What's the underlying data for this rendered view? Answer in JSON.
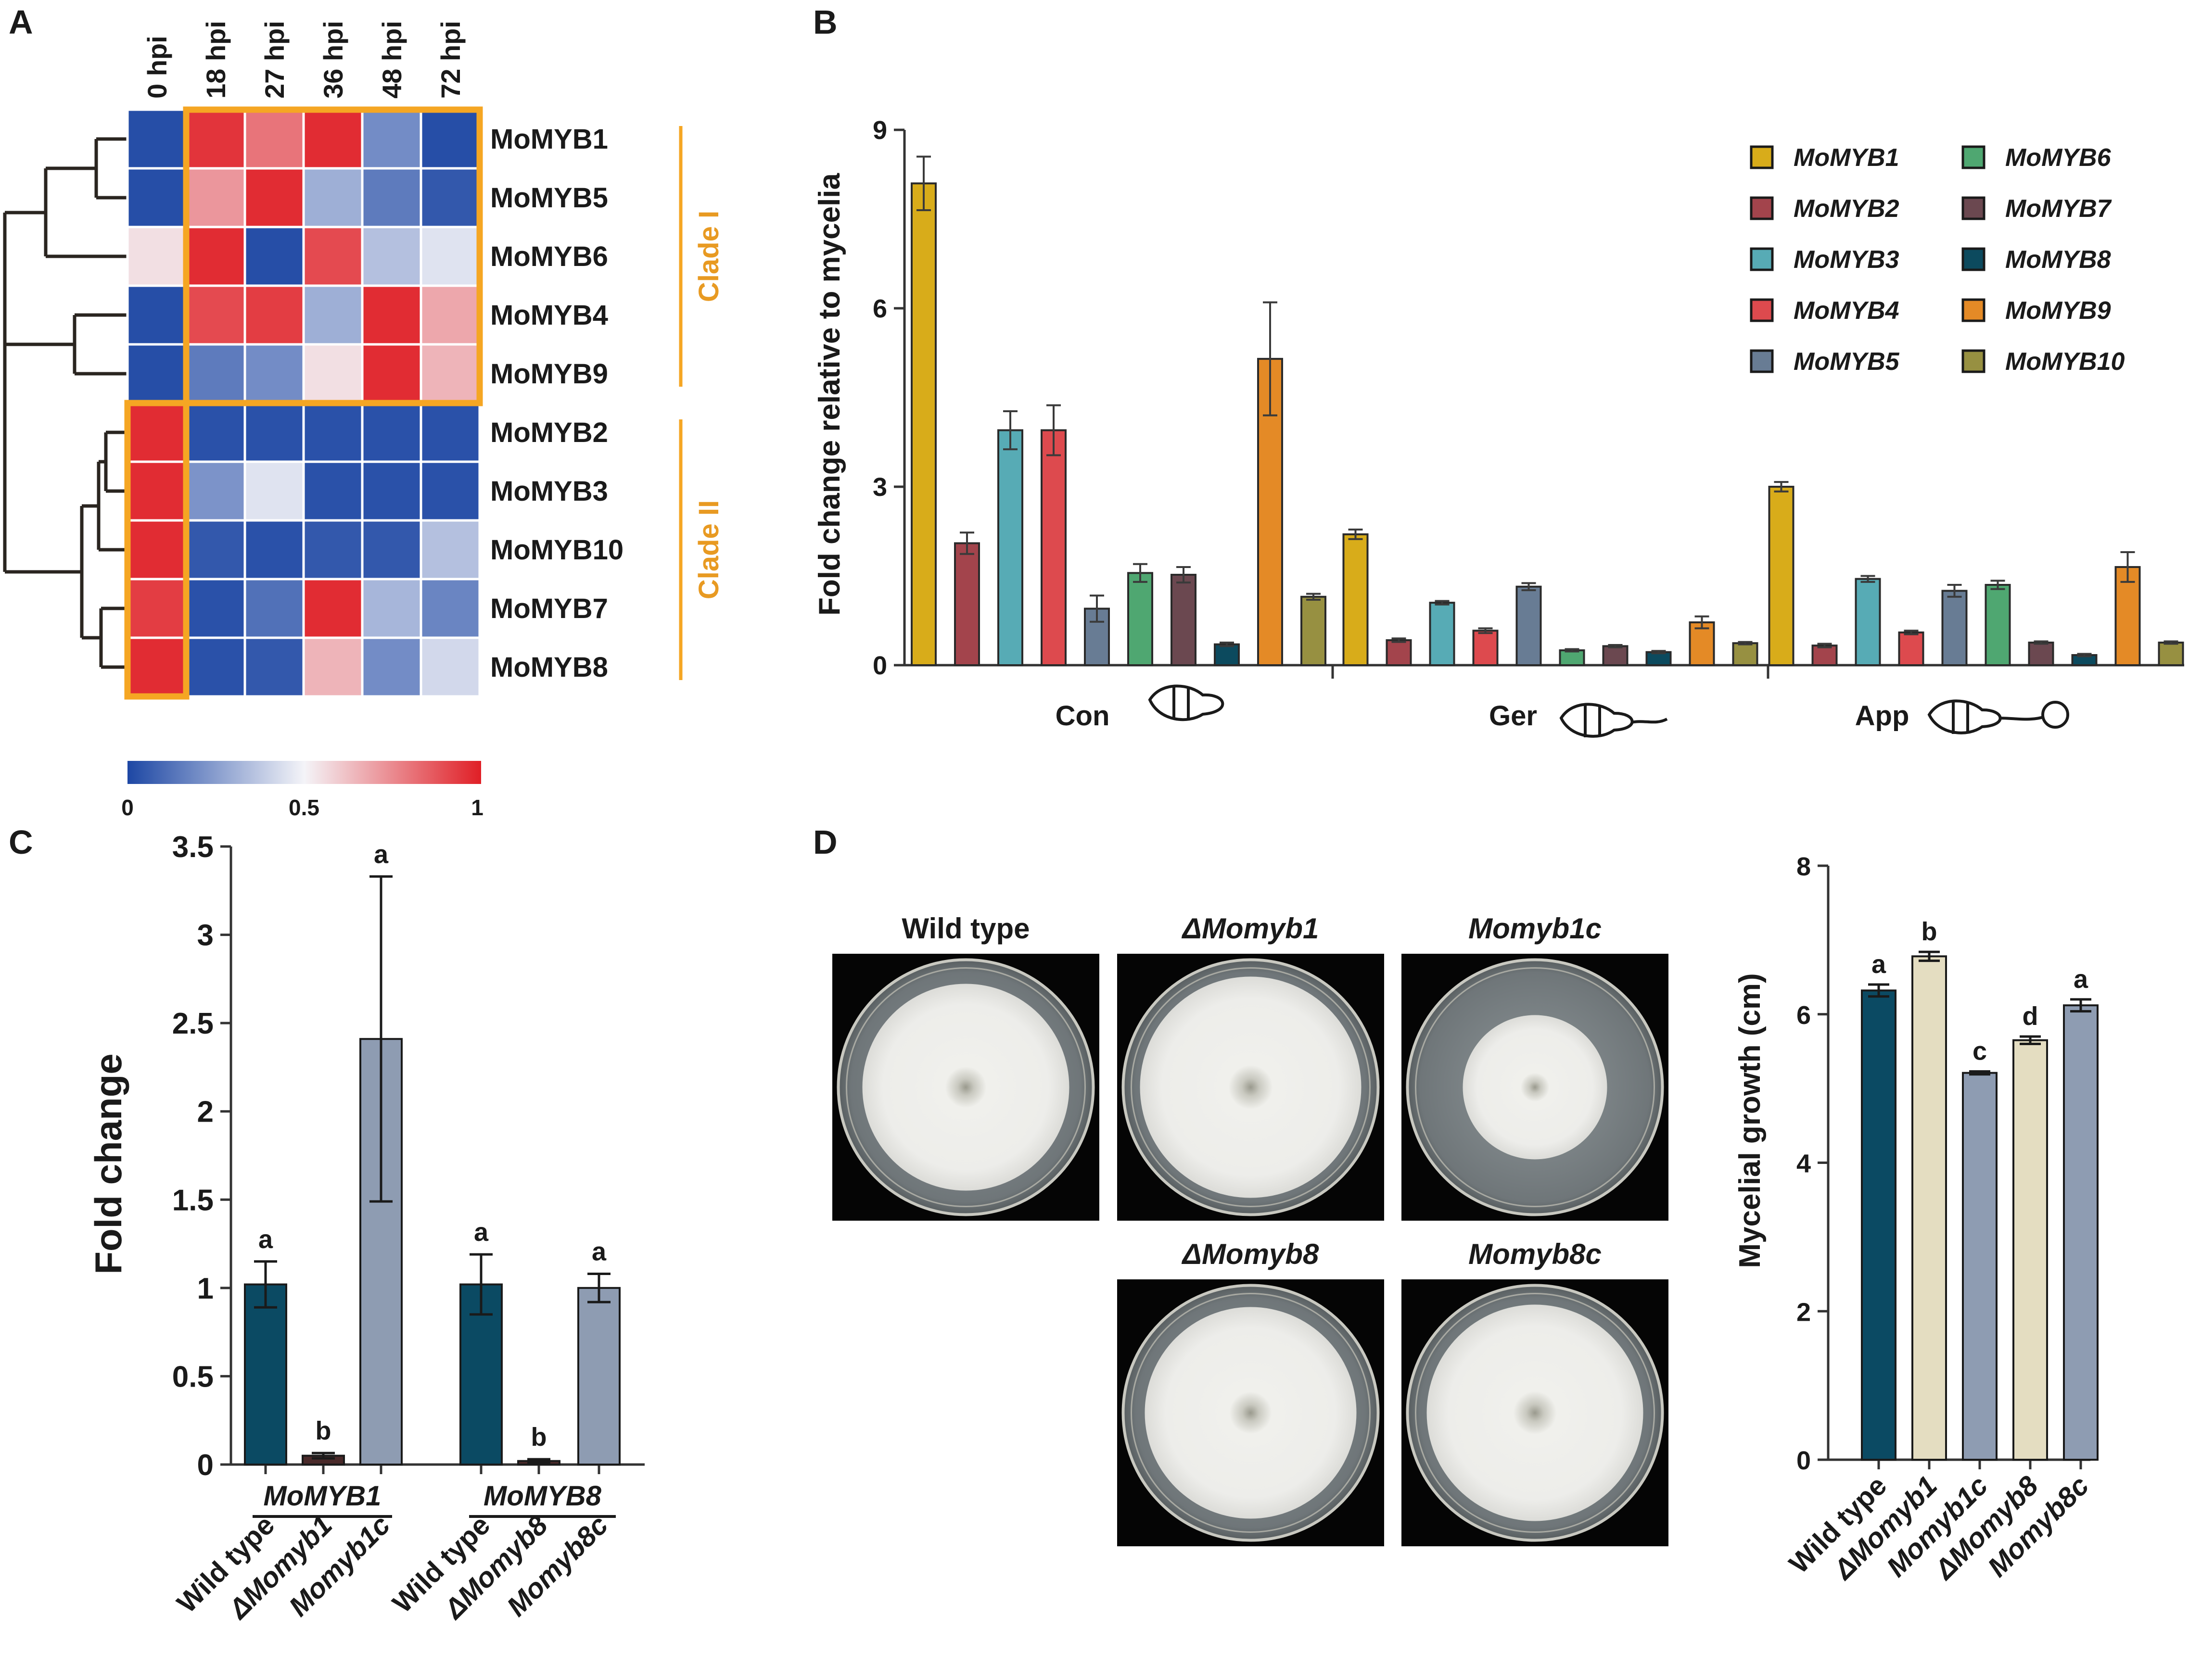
{
  "panel_labels": [
    "A",
    "B",
    "C",
    "D"
  ],
  "colors": {
    "heat_low": "#1d47a4",
    "heat_mid": "#f4f4f8",
    "heat_high": "#e01f26",
    "clade_box": "#f5a623",
    "clade_text": "#e89a22",
    "c_wt": "#0b4a63",
    "c_del": "#4a2a2a",
    "c_comp": "#8e9cb2",
    "d_wt": "#0b4a63",
    "d_del": "#e4ddc1",
    "d_comp": "#8e9cb2"
  },
  "dishes": [
    {
      "label": "Wild type"
    },
    {
      "label": "ΔMomyb1"
    },
    {
      "label": "Momyb1c"
    },
    {
      "label": "ΔMomyb8"
    },
    {
      "label": "Momyb8c"
    }
  ],
  "chart_data": [
    {
      "panel": "A",
      "type": "heatmap",
      "columns": [
        "0  hpi",
        "18 hpi",
        "27 hpi",
        "36 hpi",
        "48 hpi",
        "72 hpi"
      ],
      "rows": [
        "MoMYB1",
        "MoMYB5",
        "MoMYB6",
        "MoMYB4",
        "MoMYB9",
        "MoMYB2",
        "MoMYB3",
        "MoMYB10",
        "MoMYB7",
        "MoMYB8"
      ],
      "values": [
        [
          0.02,
          0.95,
          0.8,
          0.97,
          0.2,
          0.02
        ],
        [
          0.02,
          0.72,
          0.97,
          0.3,
          0.15,
          0.05
        ],
        [
          0.55,
          0.97,
          0.02,
          0.9,
          0.35,
          0.45
        ],
        [
          0.02,
          0.9,
          0.93,
          0.3,
          0.97,
          0.68
        ],
        [
          0.02,
          0.15,
          0.2,
          0.55,
          0.97,
          0.65
        ],
        [
          0.97,
          0.03,
          0.03,
          0.03,
          0.03,
          0.03
        ],
        [
          0.97,
          0.22,
          0.45,
          0.03,
          0.03,
          0.03
        ],
        [
          0.97,
          0.05,
          0.03,
          0.05,
          0.05,
          0.35
        ],
        [
          0.93,
          0.03,
          0.12,
          0.97,
          0.32,
          0.18
        ],
        [
          0.97,
          0.03,
          0.05,
          0.65,
          0.2,
          0.42
        ]
      ],
      "clades": [
        {
          "label": "Clade I",
          "rows": [
            0,
            4
          ],
          "cols": [
            1,
            5
          ]
        },
        {
          "label": "Clade II",
          "rows": [
            5,
            9
          ],
          "cols": [
            0,
            0
          ]
        }
      ],
      "colorbar": {
        "min": "0",
        "mid": "0.5",
        "max": "1"
      }
    },
    {
      "panel": "B",
      "type": "bar",
      "ylabel": "Fold change relative to mycelia",
      "ylim": [
        0,
        9
      ],
      "yticks": [
        "0",
        "3",
        "6",
        "9"
      ],
      "categories": [
        "Con",
        "Ger",
        "App"
      ],
      "series": [
        {
          "name": "MoMYB1",
          "color": "#d8ac1a",
          "values": [
            8.1,
            2.2,
            3.0
          ],
          "errors": [
            0.45,
            0.08,
            0.08
          ]
        },
        {
          "name": "MoMYB2",
          "color": "#a3444c",
          "values": [
            2.05,
            0.42,
            0.33
          ],
          "errors": [
            0.18,
            0.03,
            0.03
          ]
        },
        {
          "name": "MoMYB3",
          "color": "#57abb5",
          "values": [
            3.95,
            1.05,
            1.45
          ],
          "errors": [
            0.32,
            0.03,
            0.05
          ]
        },
        {
          "name": "MoMYB4",
          "color": "#dd4a4e",
          "values": [
            3.95,
            0.58,
            0.55
          ],
          "errors": [
            0.42,
            0.04,
            0.03
          ]
        },
        {
          "name": "MoMYB5",
          "color": "#687c94",
          "values": [
            0.95,
            1.32,
            1.25
          ],
          "errors": [
            0.22,
            0.06,
            0.1
          ]
        },
        {
          "name": "MoMYB6",
          "color": "#4fa771",
          "values": [
            1.55,
            0.25,
            1.35
          ],
          "errors": [
            0.15,
            0.02,
            0.07
          ]
        },
        {
          "name": "MoMYB7",
          "color": "#6b4850",
          "values": [
            1.52,
            0.32,
            0.38
          ],
          "errors": [
            0.13,
            0.02,
            0.02
          ]
        },
        {
          "name": "MoMYB8",
          "color": "#0c4a5e",
          "values": [
            0.35,
            0.22,
            0.17
          ],
          "errors": [
            0.03,
            0.02,
            0.02
          ]
        },
        {
          "name": "MoMYB9",
          "color": "#e48a26",
          "values": [
            5.15,
            0.72,
            1.65
          ],
          "errors": [
            0.95,
            0.1,
            0.25
          ]
        },
        {
          "name": "MoMYB10",
          "color": "#979041",
          "values": [
            1.15,
            0.37,
            0.38
          ],
          "errors": [
            0.05,
            0.02,
            0.02
          ]
        }
      ]
    },
    {
      "panel": "C",
      "type": "bar",
      "ylabel": "Fold change",
      "ylim": [
        0,
        3.5
      ],
      "yticks": [
        "0",
        "0.5",
        "1",
        "1.5",
        "2",
        "2.5",
        "3",
        "3.5"
      ],
      "groups": [
        "MoMYB1",
        "MoMYB8"
      ],
      "bars": [
        {
          "label": "Wild type",
          "group": 0,
          "kind": "wt",
          "value": 1.02,
          "error": 0.13,
          "sig": "a"
        },
        {
          "label": "ΔMomyb1",
          "group": 0,
          "kind": "del",
          "value": 0.05,
          "error": 0.015,
          "sig": "b"
        },
        {
          "label": "Momyb1c",
          "group": 0,
          "kind": "comp",
          "value": 2.41,
          "error": 0.92,
          "sig": "a"
        },
        {
          "label": "Wild type",
          "group": 1,
          "kind": "wt",
          "value": 1.02,
          "error": 0.17,
          "sig": "a"
        },
        {
          "label": "ΔMomyb8",
          "group": 1,
          "kind": "del",
          "value": 0.02,
          "error": 0.01,
          "sig": "b"
        },
        {
          "label": "Momyb8c",
          "group": 1,
          "kind": "comp",
          "value": 1.0,
          "error": 0.08,
          "sig": "a"
        }
      ]
    },
    {
      "panel": "D",
      "type": "bar",
      "ylabel": "Mycelial growth (cm)",
      "ylim": [
        0,
        8
      ],
      "yticks": [
        "0",
        "2",
        "4",
        "6",
        "8"
      ],
      "bars": [
        {
          "label": "Wild type",
          "kind": "wt",
          "value": 6.32,
          "error": 0.08,
          "sig": "a"
        },
        {
          "label": "ΔMomyb1",
          "kind": "del",
          "value": 6.78,
          "error": 0.06,
          "sig": "b"
        },
        {
          "label": "Momyb1c",
          "kind": "comp",
          "value": 5.21,
          "error": 0.02,
          "sig": "c"
        },
        {
          "label": "ΔMomyb8",
          "kind": "del",
          "value": 5.65,
          "error": 0.05,
          "sig": "d"
        },
        {
          "label": "Momyb8c",
          "kind": "comp",
          "value": 6.12,
          "error": 0.08,
          "sig": "a"
        }
      ]
    }
  ]
}
